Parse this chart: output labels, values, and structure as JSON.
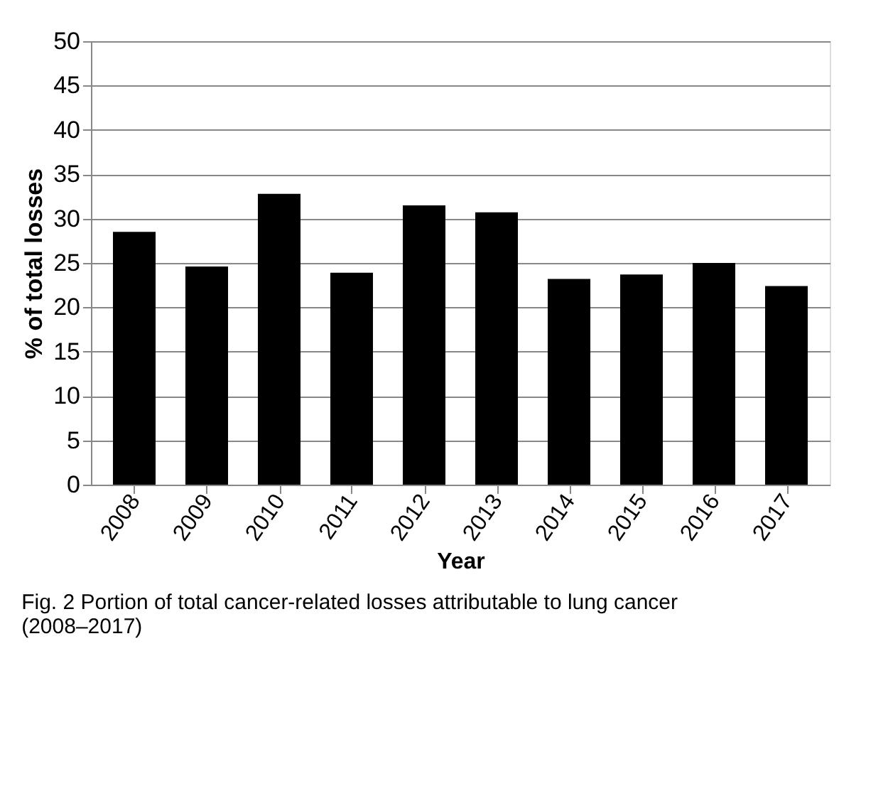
{
  "chart_data": {
    "type": "bar",
    "xlabel": "Year",
    "ylabel": "% of total losses",
    "categories": [
      "2008",
      "2009",
      "2010",
      "2011",
      "2012",
      "2013",
      "2014",
      "2015",
      "2016",
      "2017"
    ],
    "values": [
      28.5,
      24.6,
      32.8,
      23.9,
      31.5,
      30.7,
      23.2,
      23.7,
      25.0,
      22.4
    ],
    "color": "#000000",
    "ylim": [
      0,
      50
    ],
    "yticks": [
      0,
      5,
      10,
      15,
      20,
      25,
      30,
      35,
      40,
      45,
      50
    ],
    "grid": "y",
    "annotations": [
      "Fig. 2 Portion of total cancer-related losses attributable to lung cancer (2008–2017)"
    ]
  }
}
